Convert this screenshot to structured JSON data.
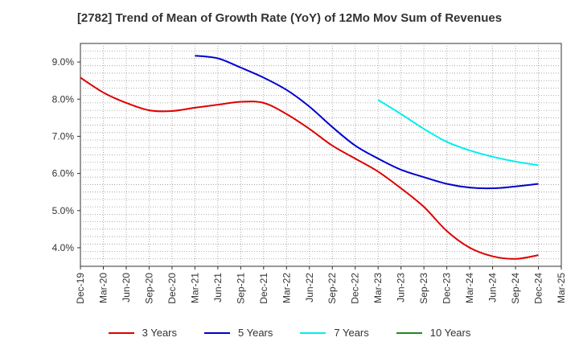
{
  "chart_data": {
    "type": "line",
    "title": "[2782]  Trend of Mean of Growth Rate (YoY) of 12Mo Mov Sum of Revenues",
    "xlabel": "",
    "ylabel": "",
    "categories": [
      "Dec-19",
      "Mar-20",
      "Jun-20",
      "Sep-20",
      "Dec-20",
      "Mar-21",
      "Jun-21",
      "Sep-21",
      "Dec-21",
      "Mar-22",
      "Jun-22",
      "Sep-22",
      "Dec-22",
      "Mar-23",
      "Jun-23",
      "Sep-23",
      "Dec-23",
      "Mar-24",
      "Jun-24",
      "Sep-24",
      "Dec-24",
      "Mar-25"
    ],
    "ylim": [
      3.5,
      9.5
    ],
    "yticks": [
      4.0,
      5.0,
      6.0,
      7.0,
      8.0,
      9.0
    ],
    "ytick_labels": [
      "4.0%",
      "5.0%",
      "6.0%",
      "7.0%",
      "8.0%",
      "9.0%"
    ],
    "grid": true,
    "legend_position": "bottom",
    "series": [
      {
        "name": "3 Years",
        "color": "#dd0000",
        "values": [
          8.58,
          8.18,
          7.9,
          7.7,
          7.68,
          7.77,
          7.85,
          7.93,
          7.9,
          7.6,
          7.2,
          6.75,
          6.4,
          6.05,
          5.6,
          5.1,
          4.45,
          4.0,
          3.77,
          3.7,
          3.8,
          null
        ]
      },
      {
        "name": "5 Years",
        "color": "#0000cc",
        "values": [
          null,
          null,
          null,
          null,
          null,
          9.17,
          9.1,
          8.85,
          8.58,
          8.25,
          7.8,
          7.25,
          6.75,
          6.4,
          6.1,
          5.9,
          5.72,
          5.62,
          5.6,
          5.65,
          5.72,
          null
        ]
      },
      {
        "name": "7 Years",
        "color": "#00eeee",
        "values": [
          null,
          null,
          null,
          null,
          null,
          null,
          null,
          null,
          null,
          null,
          null,
          null,
          null,
          7.98,
          7.6,
          7.2,
          6.85,
          6.62,
          6.45,
          6.32,
          6.22,
          null
        ]
      },
      {
        "name": "10 Years",
        "color": "#228822",
        "values": [
          null,
          null,
          null,
          null,
          null,
          null,
          null,
          null,
          null,
          null,
          null,
          null,
          null,
          null,
          null,
          null,
          null,
          null,
          null,
          null,
          null,
          null
        ]
      }
    ]
  }
}
